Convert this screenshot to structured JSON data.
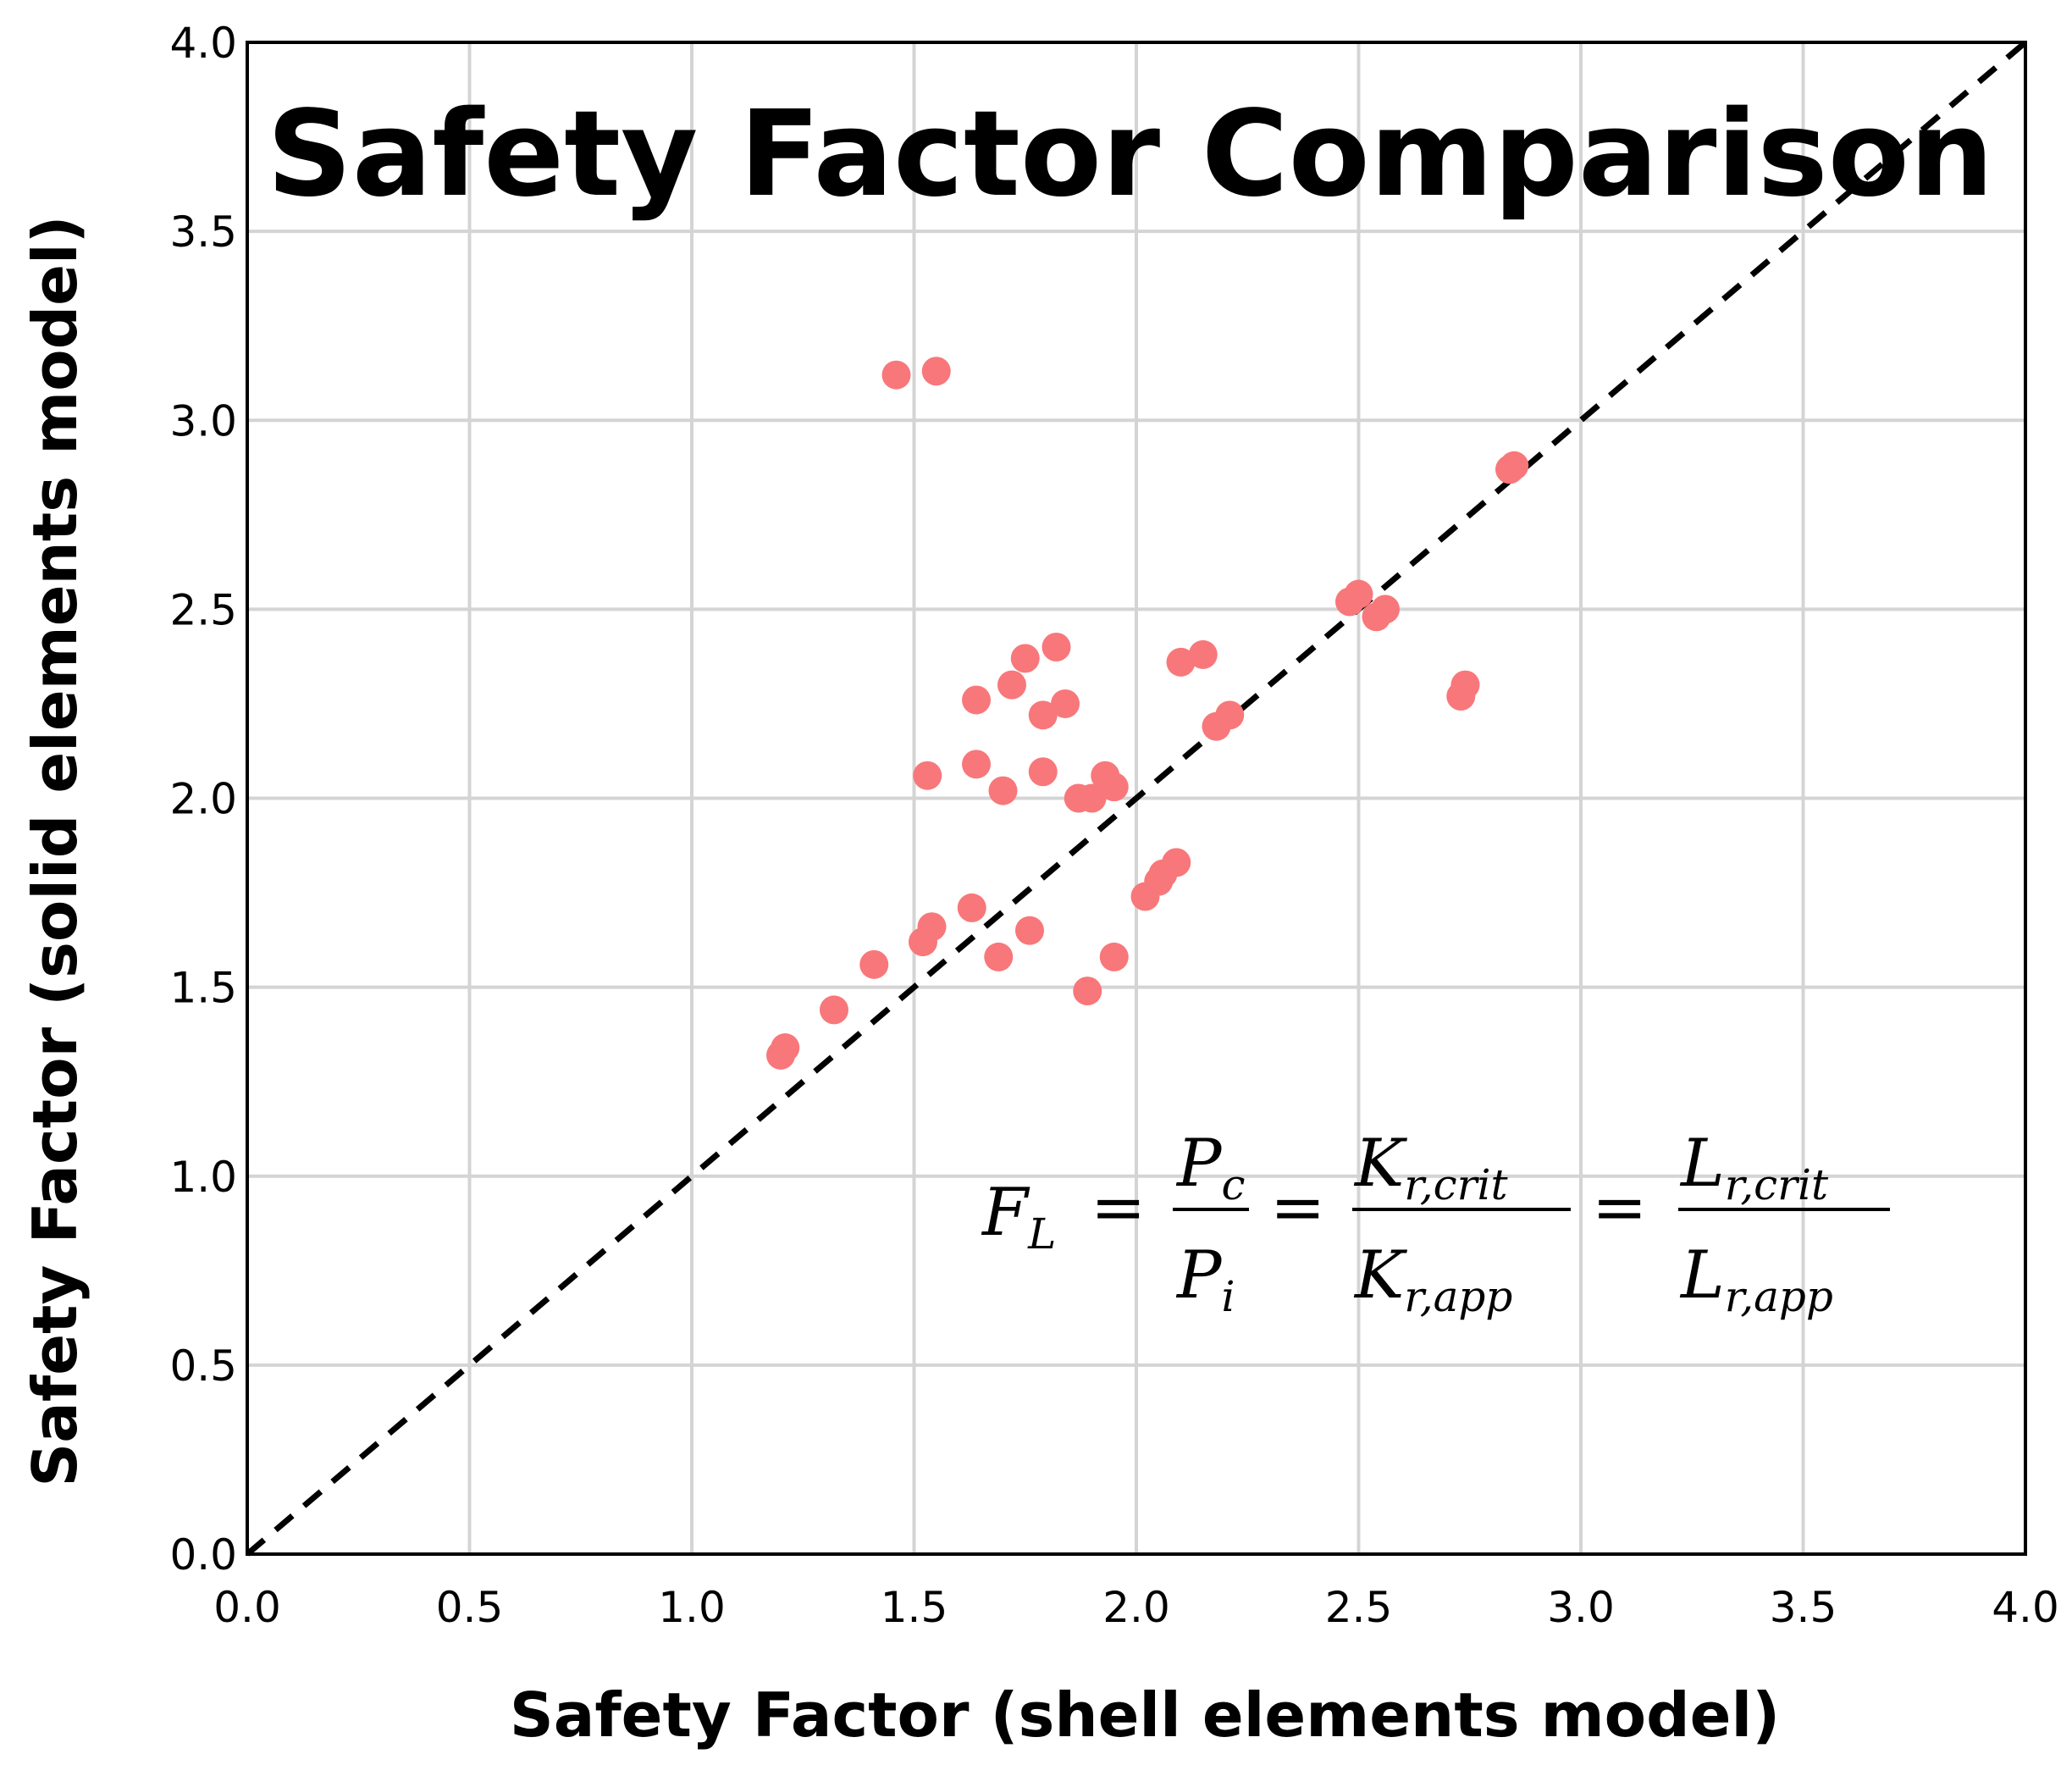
{
  "chart_data": {
    "type": "scatter",
    "title": "Safety Factor Comparison",
    "xlabel": "Safety Factor (shell elements model)",
    "ylabel": "Safety Factor (solid elements model)",
    "xlim": [
      0.0,
      4.0
    ],
    "ylim": [
      0.0,
      4.0
    ],
    "xticks": [
      "0.0",
      "0.5",
      "1.0",
      "1.5",
      "2.0",
      "2.5",
      "3.0",
      "3.5",
      "4.0"
    ],
    "yticks": [
      "0.0",
      "0.5",
      "1.0",
      "1.5",
      "2.0",
      "2.5",
      "3.0",
      "3.5",
      "4.0"
    ],
    "grid": true,
    "reference_line": "y = x (dashed)",
    "point_color": "#f8777a",
    "equation": {
      "lhs": "F",
      "lhs_sub": "L",
      "equals": "=",
      "frac1_num": "P",
      "frac1_num_sub": "c",
      "frac1_den": "P",
      "frac1_den_sub": "i",
      "frac2_num": "K",
      "frac2_num_sub": "r,crit",
      "frac2_den": "K",
      "frac2_den_sub": "r,app",
      "frac3_num": "L",
      "frac3_num_sub": "r,crit",
      "frac3_den": "L",
      "frac3_den_sub": "r,app"
    },
    "points": [
      [
        1.46,
        3.12
      ],
      [
        1.55,
        3.13
      ],
      [
        2.84,
        2.87
      ],
      [
        2.85,
        2.88
      ],
      [
        2.48,
        2.52
      ],
      [
        2.5,
        2.54
      ],
      [
        2.54,
        2.48
      ],
      [
        2.56,
        2.5
      ],
      [
        2.73,
        2.27
      ],
      [
        2.74,
        2.3
      ],
      [
        1.82,
        2.4
      ],
      [
        1.75,
        2.37
      ],
      [
        1.72,
        2.3
      ],
      [
        1.64,
        2.26
      ],
      [
        1.79,
        2.22
      ],
      [
        1.84,
        2.25
      ],
      [
        2.1,
        2.36
      ],
      [
        2.15,
        2.38
      ],
      [
        2.18,
        2.19
      ],
      [
        2.21,
        2.22
      ],
      [
        1.53,
        2.06
      ],
      [
        1.64,
        2.09
      ],
      [
        1.7,
        2.02
      ],
      [
        1.79,
        2.07
      ],
      [
        1.87,
        2.0
      ],
      [
        1.9,
        2.0
      ],
      [
        1.93,
        2.06
      ],
      [
        1.95,
        2.03
      ],
      [
        2.02,
        1.74
      ],
      [
        2.05,
        1.78
      ],
      [
        2.06,
        1.8
      ],
      [
        2.09,
        1.83
      ],
      [
        1.52,
        1.62
      ],
      [
        1.54,
        1.66
      ],
      [
        1.63,
        1.71
      ],
      [
        1.69,
        1.58
      ],
      [
        1.76,
        1.65
      ],
      [
        1.89,
        1.49
      ],
      [
        1.95,
        1.58
      ],
      [
        1.41,
        1.56
      ],
      [
        1.32,
        1.44
      ],
      [
        1.2,
        1.32
      ],
      [
        1.21,
        1.34
      ]
    ]
  }
}
